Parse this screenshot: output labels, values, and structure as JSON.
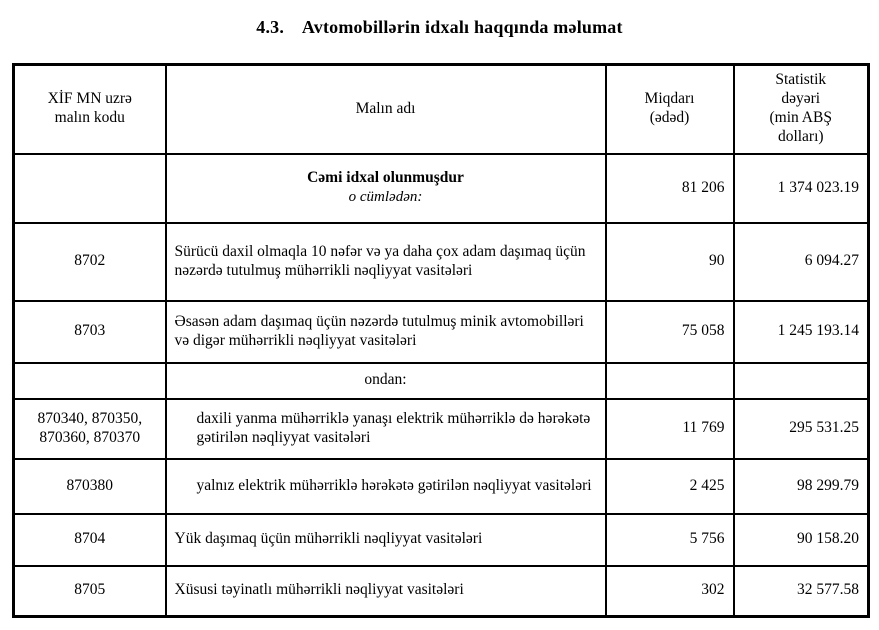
{
  "title": "4.3.    Avtomobillərin idxalı haqqında məlumat",
  "table": {
    "headers": {
      "code": "XİF MN uzrə\nmalın kodu",
      "name": "Malın adı",
      "qty": "Miqdarı\n(ədəd)",
      "value": "Statistik\ndəyəri\n(min ABŞ\ndolları)"
    },
    "rows": [
      {
        "code": "",
        "name": "Cəmi idxal olunmuşdur",
        "subname": "o cümlədən:",
        "qty": "81 206",
        "value": "1 374 023.19"
      },
      {
        "code": "8702",
        "name": "Sürücü daxil olmaqla 10 nəfər və ya daha çox adam daşımaq üçün nəzərdə tutulmuş mühərrikli nəqliyyat vasitələri",
        "qty": "90",
        "value": "6 094.27"
      },
      {
        "code": "8703",
        "name": "Əsasən adam daşımaq üçün nəzərdə tutulmuş minik avtomobilləri və digər mühərrikli nəqliyyat vasitələri",
        "qty": "75 058",
        "value": "1 245 193.14"
      },
      {
        "code": "",
        "name": "ondan:",
        "qty": "",
        "value": ""
      },
      {
        "code": "870340, 870350,\n870360, 870370",
        "name": "daxili yanma mühərriklə yanaşı elektrik mühərriklə də hərəkətə gətirilən nəqliyyat vasitələri",
        "qty": "11 769",
        "value": "295 531.25"
      },
      {
        "code": "870380",
        "name": "yalnız elektrik mühərriklə hərəkətə gətirilən nəqliyyat vasitələri",
        "qty": "2 425",
        "value": "98 299.79"
      },
      {
        "code": "8704",
        "name": "Yük daşımaq üçün mühərrikli nəqliyyat vasitələri",
        "qty": "5 756",
        "value": "90 158.20"
      },
      {
        "code": "8705",
        "name": "Xüsusi təyinatlı mühərrikli nəqliyyat vasitələri",
        "qty": "302",
        "value": "32 577.58"
      }
    ]
  }
}
